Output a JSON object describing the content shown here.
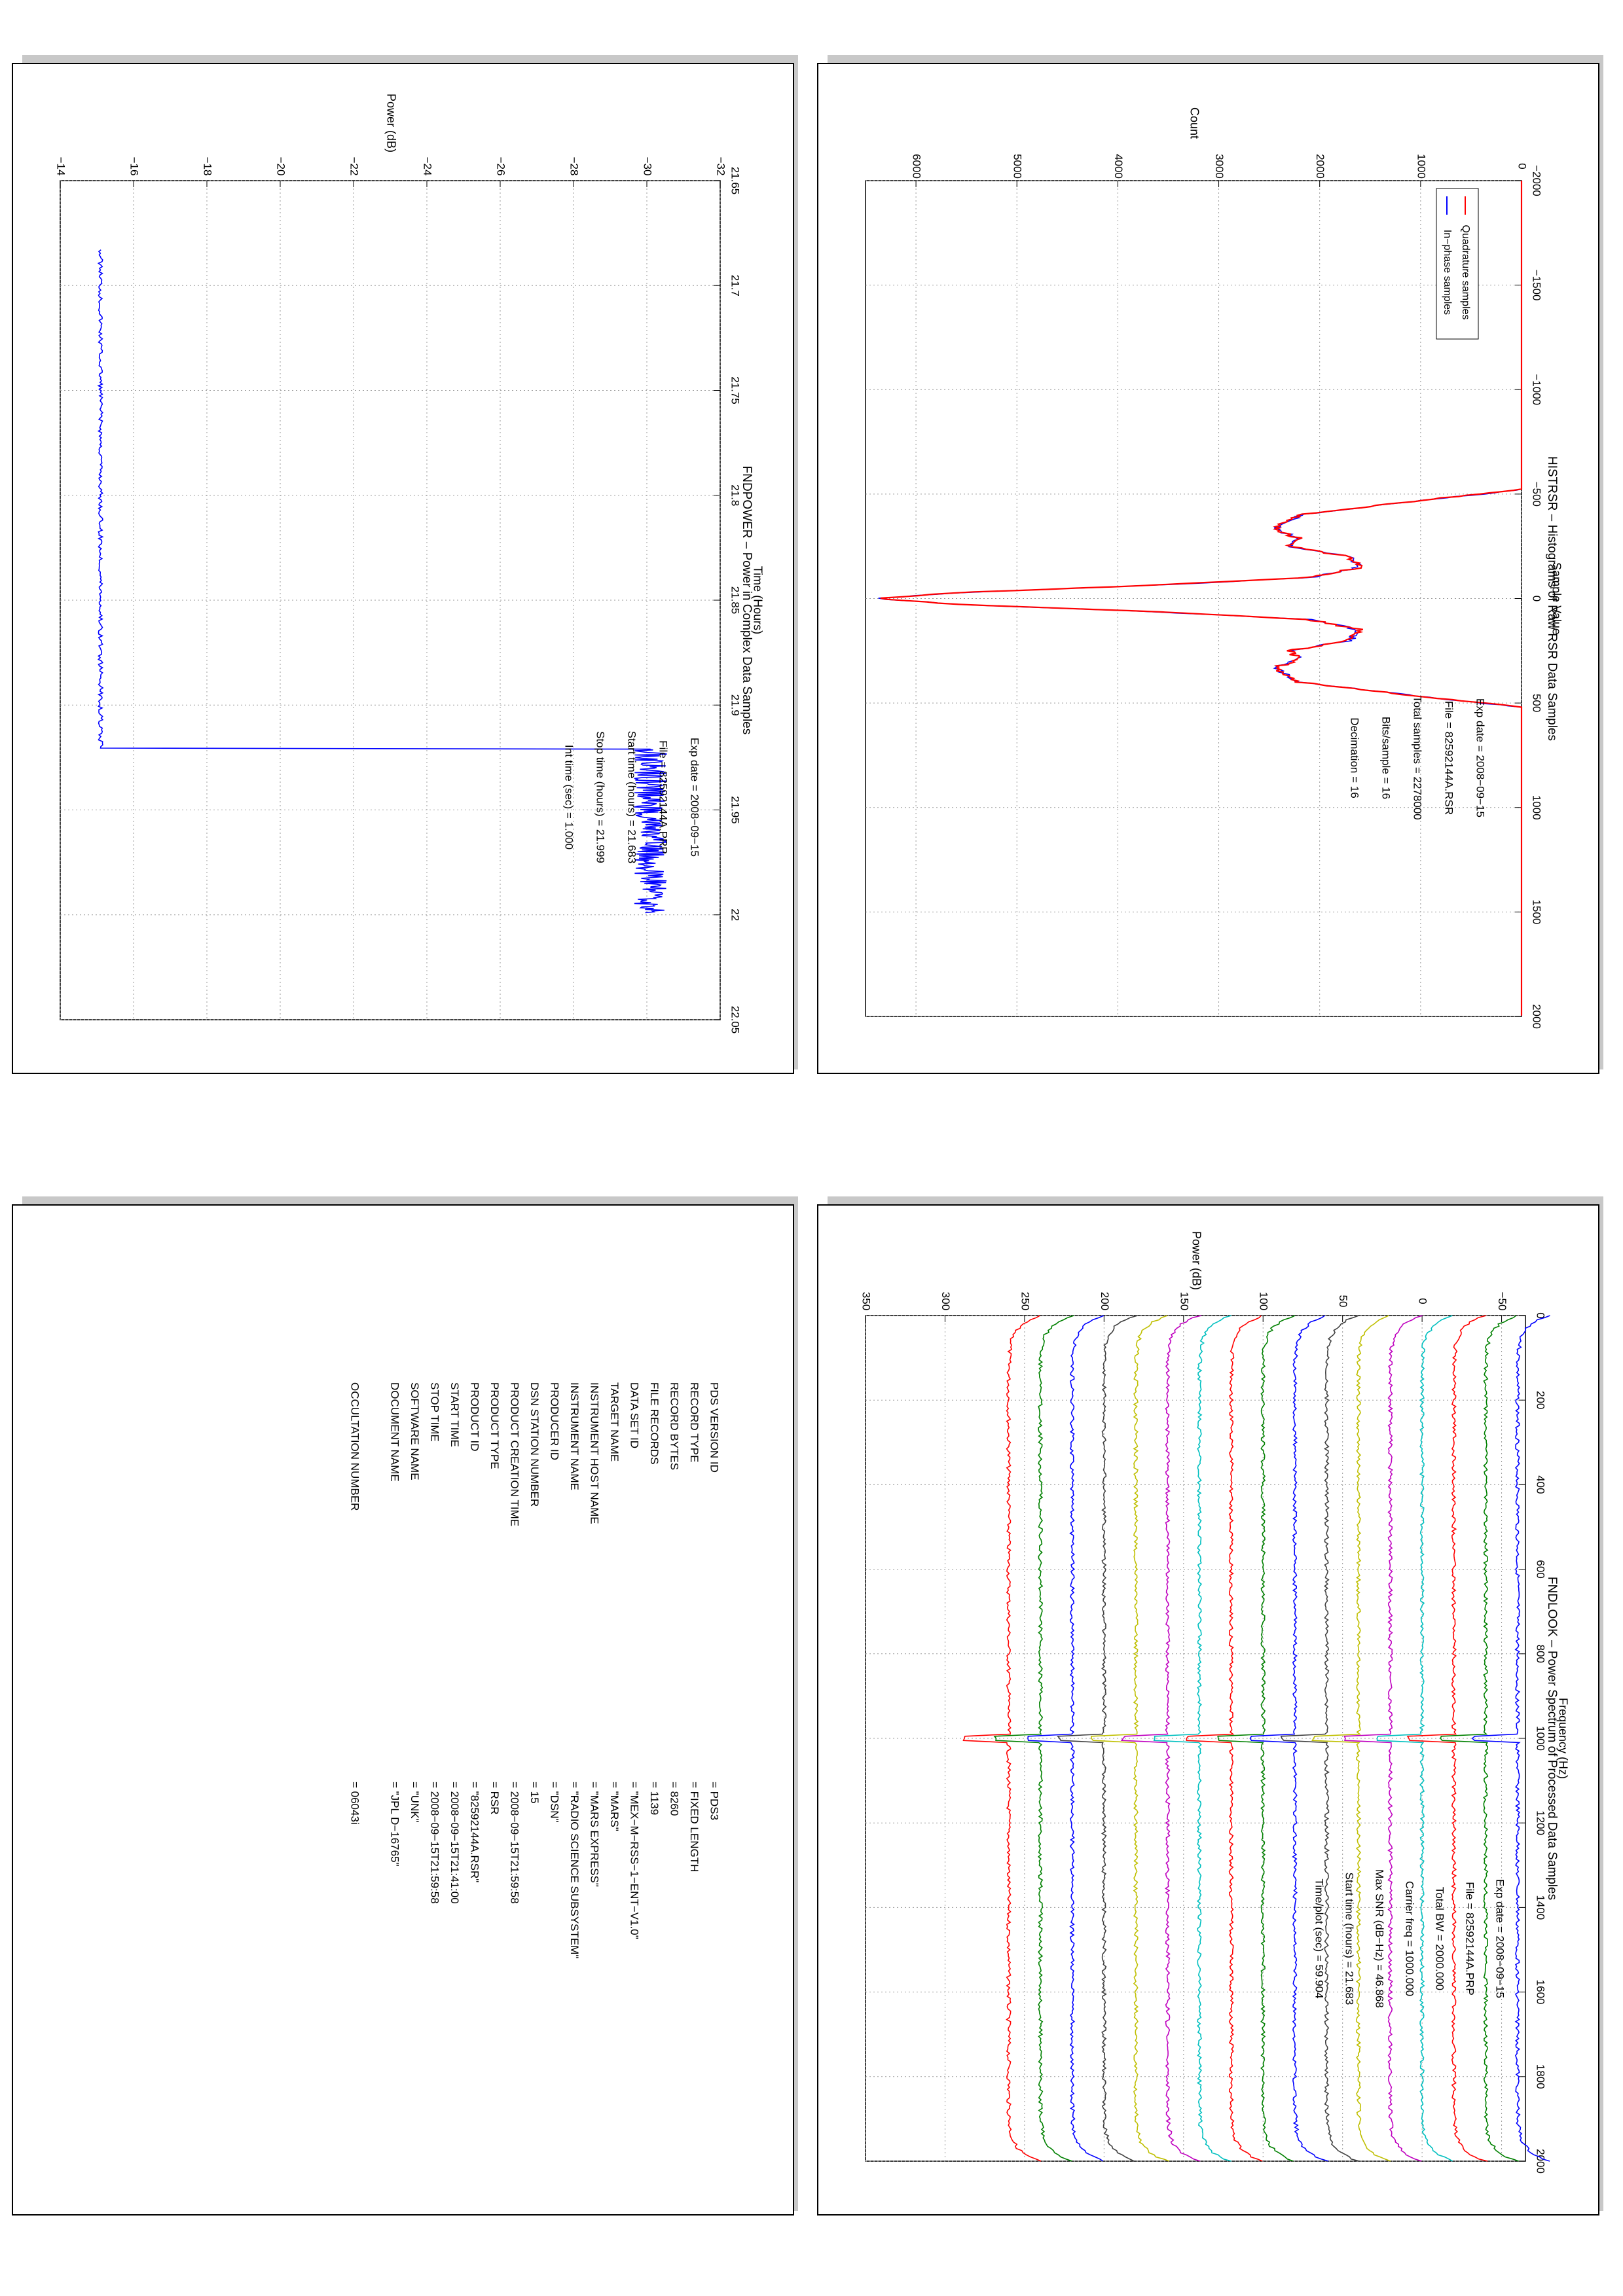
{
  "colors": {
    "blue": "#0000ff",
    "red": "#ff0000",
    "green": "#008000",
    "cyan": "#00bfbf",
    "magenta": "#bf00bf",
    "olive": "#bfbf00",
    "dark": "#404040",
    "shadow": "#c8c8c8"
  },
  "histrsr": {
    "title": "HISTRSR – Histograms of Raw RSR Data Samples",
    "xlabel": "Sample Value",
    "ylabel": "Count",
    "xticks": [
      "−2000",
      "−1500",
      "−1000",
      "−500",
      "0",
      "500",
      "1000",
      "1500",
      "2000"
    ],
    "yticks": [
      "0",
      "1000",
      "2000",
      "3000",
      "4000",
      "5000",
      "6000"
    ],
    "legend": [
      "In−phase samples",
      "Quadrature samples"
    ],
    "info": [
      "Exp date = 2008−09−15",
      "File = 82592144A.RSR",
      "Total samples =    2278000",
      "Bits/sample   =       16",
      "Decimation    =       16"
    ]
  },
  "fndpower": {
    "title": "FNDPOWER – Power in Complex Data Samples",
    "xlabel": "Time (Hours)",
    "ylabel": "Power (dB)",
    "xticks": [
      "21.65",
      "21.7",
      "21.75",
      "21.8",
      "21.85",
      "21.9",
      "21.95",
      "22",
      "22.05"
    ],
    "yticks": [
      "−32",
      "−30",
      "−28",
      "−26",
      "−24",
      "−22",
      "−20",
      "−18",
      "−16",
      "−14"
    ],
    "info": [
      "Exp date = 2008−09−15",
      "File = 82592144A.PRP",
      "Start time (hours) = 21.683",
      "Stop time (hours) = 21.999",
      "Int time (sec) =     1.000"
    ]
  },
  "fndlook": {
    "title": "FNDLOOK – Power Spectrum of Processed Data Samples",
    "xlabel": "Frequency (Hz)",
    "ylabel": "Power (dB)",
    "xticks": [
      "0",
      "200",
      "400",
      "600",
      "800",
      "1000",
      "1200",
      "1400",
      "1600",
      "1800",
      "2000"
    ],
    "yticks": [
      "−50",
      "0",
      "50",
      "100",
      "150",
      "200",
      "250",
      "300",
      "350"
    ],
    "info": [
      "Exp date = 2008−09−15",
      "File = 82592144A.PRP",
      "Total BW =     2000.000",
      "Carrier freq =   1000.000",
      "Max SNR (dB−Hz) =    46.868",
      "Start time (hours) =  21.683",
      "Time/plot (sec) =    59.904"
    ]
  },
  "label": {
    "rows": [
      {
        "key": "PDS VERSION ID",
        "value": "=  PDS3"
      },
      {
        "key": "RECORD TYPE",
        "value": "=  FIXED LENGTH"
      },
      {
        "key": "RECORD BYTES",
        "value": "=  8260"
      },
      {
        "key": "FILE RECORDS",
        "value": "=  1139"
      },
      {
        "key": "DATA SET ID",
        "value": "=  \"MEX−M−RSS−1−ENT−V1.0\""
      },
      {
        "key": "TARGET NAME",
        "value": "=  \"MARS\""
      },
      {
        "key": "INSTRUMENT HOST NAME",
        "value": "=  \"MARS EXPRESS\""
      },
      {
        "key": "INSTRUMENT NAME",
        "value": "=  \"RADIO SCIENCE SUBSYSTEM\""
      },
      {
        "key": "PRODUCER ID",
        "value": "=  \"DSN\""
      },
      {
        "key": "DSN STATION NUMBER",
        "value": "=  15"
      },
      {
        "key": "PRODUCT CREATION TIME",
        "value": "=  2008−09−15T21:59:58"
      },
      {
        "key": "PRODUCT TYPE",
        "value": "=  RSR"
      },
      {
        "key": "PRODUCT ID",
        "value": "=  \"82592144A.RSR\""
      },
      {
        "key": "START TIME",
        "value": "=  2008−09−15T21:41:00"
      },
      {
        "key": "STOP TIME",
        "value": "=  2008−09−15T21:59:58"
      },
      {
        "key": "SOFTWARE NAME",
        "value": "=  \"UNK\""
      },
      {
        "key": "DOCUMENT NAME",
        "value": "=  \"JPL D−16765\""
      },
      {
        "key": "",
        "value": ""
      },
      {
        "key": "OCCULTATION NUMBER",
        "value": "=  06043i"
      }
    ]
  },
  "chart_data": [
    {
      "type": "line",
      "title": "HISTRSR – Histograms of Raw RSR Data Samples",
      "xlabel": "Sample Value",
      "ylabel": "Count",
      "xlim": [
        -2000,
        2000
      ],
      "ylim": [
        0,
        6500
      ],
      "legend": "top-left",
      "grid": true,
      "series": [
        {
          "name": "In−phase samples",
          "x": [
            -2000,
            -520,
            -480,
            -400,
            -330,
            -290,
            -250,
            -230,
            -200,
            -150,
            -100,
            -60,
            -30,
            0,
            30,
            60,
            100,
            150,
            200,
            230,
            250,
            290,
            330,
            400,
            480,
            520,
            2000
          ],
          "values": [
            0,
            0,
            800,
            2200,
            2450,
            2200,
            2300,
            2050,
            1700,
            1600,
            2100,
            3800,
            5500,
            6400,
            5500,
            3800,
            2100,
            1600,
            1700,
            2050,
            2300,
            2200,
            2450,
            2200,
            800,
            0,
            0
          ]
        },
        {
          "name": "Quadrature samples",
          "x": [
            -2000,
            -520,
            -480,
            -400,
            -330,
            -290,
            -250,
            -230,
            -200,
            -150,
            -100,
            -60,
            -30,
            0,
            30,
            60,
            100,
            150,
            200,
            230,
            250,
            290,
            330,
            400,
            480,
            520,
            2000
          ],
          "values": [
            0,
            0,
            810,
            2210,
            2460,
            2210,
            2290,
            2060,
            1710,
            1590,
            2110,
            3810,
            5520,
            6420,
            5510,
            3790,
            2110,
            1590,
            1710,
            2060,
            2310,
            2190,
            2440,
            2210,
            790,
            0,
            0
          ]
        }
      ]
    },
    {
      "type": "line",
      "title": "FNDPOWER – Power in Complex Data Samples",
      "xlabel": "Time (Hours)",
      "ylabel": "Power (dB)",
      "xlim": [
        21.65,
        22.05
      ],
      "ylim": [
        -32,
        -14
      ],
      "grid": true,
      "series": [
        {
          "name": "",
          "x": [
            21.683,
            21.75,
            21.8,
            21.85,
            21.9,
            21.92,
            21.921,
            21.95,
            21.999
          ],
          "values": [
            -15.1,
            -15.1,
            -15.1,
            -15.1,
            -15.1,
            -15.1,
            -30.1,
            -30.1,
            -30.1
          ]
        }
      ]
    },
    {
      "type": "line",
      "title": "FNDLOOK – Power Spectrum of Processed Data Samples",
      "xlabel": "Frequency (Hz)",
      "ylabel": "Power (dB)",
      "xlim": [
        0,
        2000
      ],
      "ylim": [
        -65,
        350
      ],
      "grid": true,
      "series": [
        {
          "name": "",
          "offset": -60
        },
        {
          "name": "",
          "offset": -40
        },
        {
          "name": "",
          "offset": -20
        },
        {
          "name": "",
          "offset": 0
        },
        {
          "name": "",
          "offset": 20
        },
        {
          "name": "",
          "offset": 40
        },
        {
          "name": "",
          "offset": 60
        },
        {
          "name": "",
          "offset": 80
        },
        {
          "name": "",
          "offset": 100
        },
        {
          "name": "",
          "offset": 120
        },
        {
          "name": "",
          "offset": 140
        },
        {
          "name": "",
          "offset": 160
        },
        {
          "name": "",
          "offset": 180
        },
        {
          "name": "",
          "offset": 200
        },
        {
          "name": "",
          "offset": 220
        },
        {
          "name": "",
          "offset": 240
        },
        {
          "name": "",
          "offset": 260
        }
      ]
    }
  ]
}
